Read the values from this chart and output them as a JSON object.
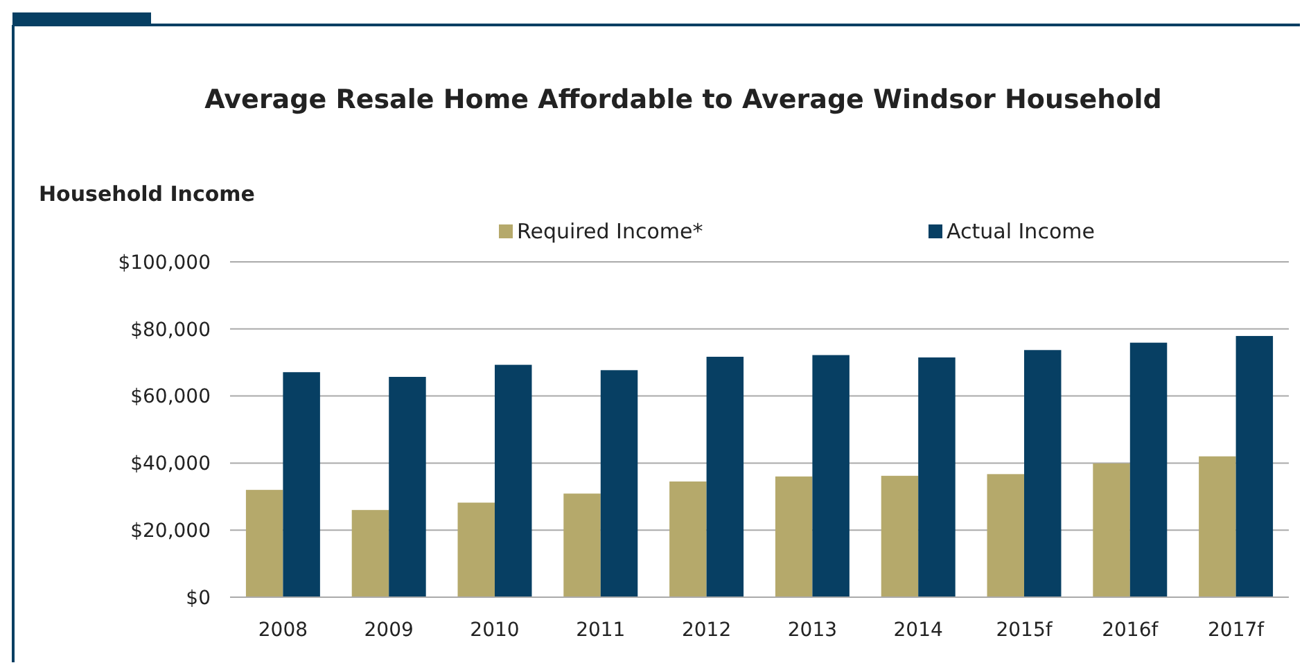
{
  "chart_data": {
    "type": "bar",
    "title": "Average Resale Home Affordable to Average Windsor Household",
    "ylabel": "Household Income",
    "categories": [
      "2008",
      "2009",
      "2010",
      "2011",
      "2012",
      "2013",
      "2014",
      "2015f",
      "2016f",
      "2017f"
    ],
    "series": [
      {
        "name": "Required Income*",
        "color": "#b5a96b",
        "values": [
          32000,
          26000,
          28200,
          30900,
          34500,
          36000,
          36200,
          36700,
          39900,
          42000
        ]
      },
      {
        "name": "Actual Income",
        "color": "#073f63",
        "values": [
          67100,
          65700,
          69300,
          67700,
          71700,
          72200,
          71500,
          73700,
          75900,
          77900
        ]
      }
    ],
    "ylim": [
      0,
      100000
    ],
    "yticks": [
      {
        "value": 0,
        "label": "$0"
      },
      {
        "value": 20000,
        "label": "$20,000"
      },
      {
        "value": 40000,
        "label": "$40,000"
      },
      {
        "value": 60000,
        "label": "$60,000"
      },
      {
        "value": 80000,
        "label": "$80,000"
      },
      {
        "value": 100000,
        "label": "$100,000"
      }
    ],
    "grid": "y",
    "legend": "top"
  }
}
